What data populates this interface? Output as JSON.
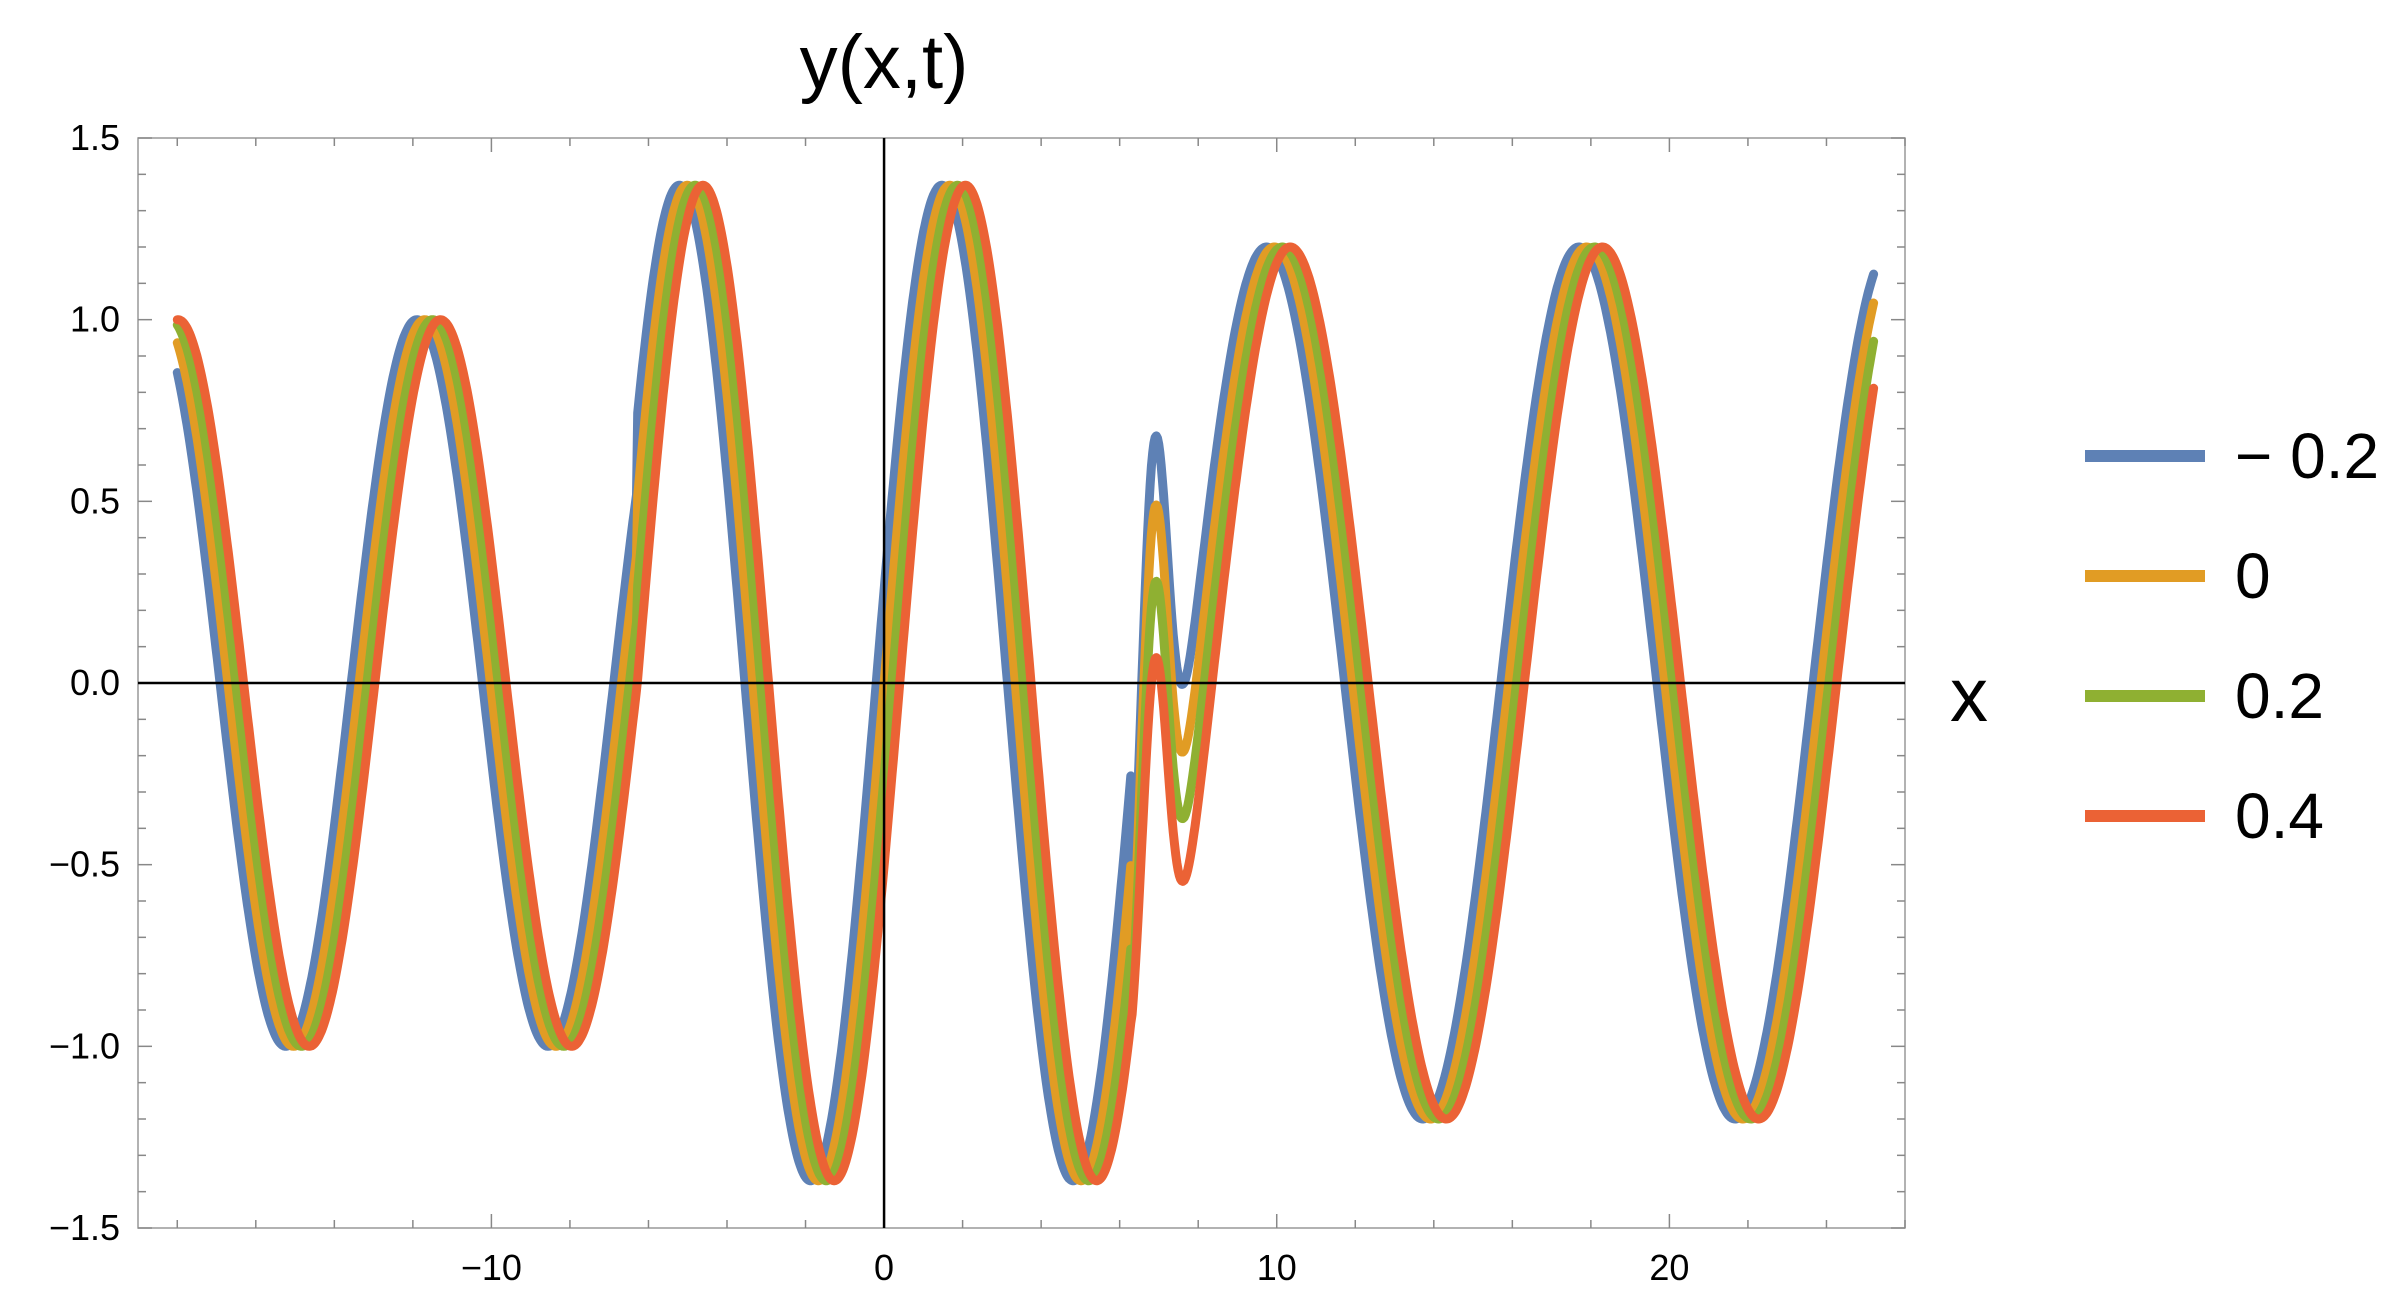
{
  "chart_data": {
    "type": "line",
    "title": "y(x,t)",
    "xlabel": "x",
    "ylabel": "",
    "xlim": [
      -19,
      26
    ],
    "ylim": [
      -1.5,
      1.5
    ],
    "axes_cross_at": [
      0,
      0
    ],
    "grid": false,
    "legend_position": "right",
    "x_ticks": [
      -10,
      0,
      10,
      20
    ],
    "x_tick_labels": [
      "−10",
      "0",
      "10",
      "20"
    ],
    "y_ticks": [
      -1.5,
      -1.0,
      -0.5,
      0.0,
      0.5,
      1.0,
      1.5
    ],
    "y_tick_labels": [
      "−1.5",
      "−1.0",
      "−0.5",
      "0.0",
      "0.5",
      "1.0",
      "1.5"
    ],
    "x_range": [
      -18,
      25.2
    ],
    "series": [
      {
        "name": "− 0.2",
        "t": -0.2,
        "color": "#5E81B5"
      },
      {
        "name": "0",
        "t": 0,
        "color": "#E19C24"
      },
      {
        "name": "0.2",
        "t": 0.2,
        "color": "#8FB032"
      },
      {
        "name": "0.4",
        "t": 0.4,
        "color": "#EB6235"
      }
    ],
    "regions": [
      {
        "x_min": -18,
        "x_max": -6.3,
        "amplitude": 1.0,
        "wave_number": 0.94,
        "speed": 1.0
      },
      {
        "x_min": -6.3,
        "x_max": 6.3,
        "amplitude": 1.37,
        "wave_number": 0.94,
        "speed": 1.0
      },
      {
        "x_min": 6.3,
        "x_max": 25.2,
        "amplitude": 1.2,
        "wave_number": 0.79,
        "speed": 1.0
      }
    ],
    "bump_near_x": 6.8,
    "bump_levels": [
      0.68,
      0.49,
      0.28,
      0.07
    ]
  }
}
